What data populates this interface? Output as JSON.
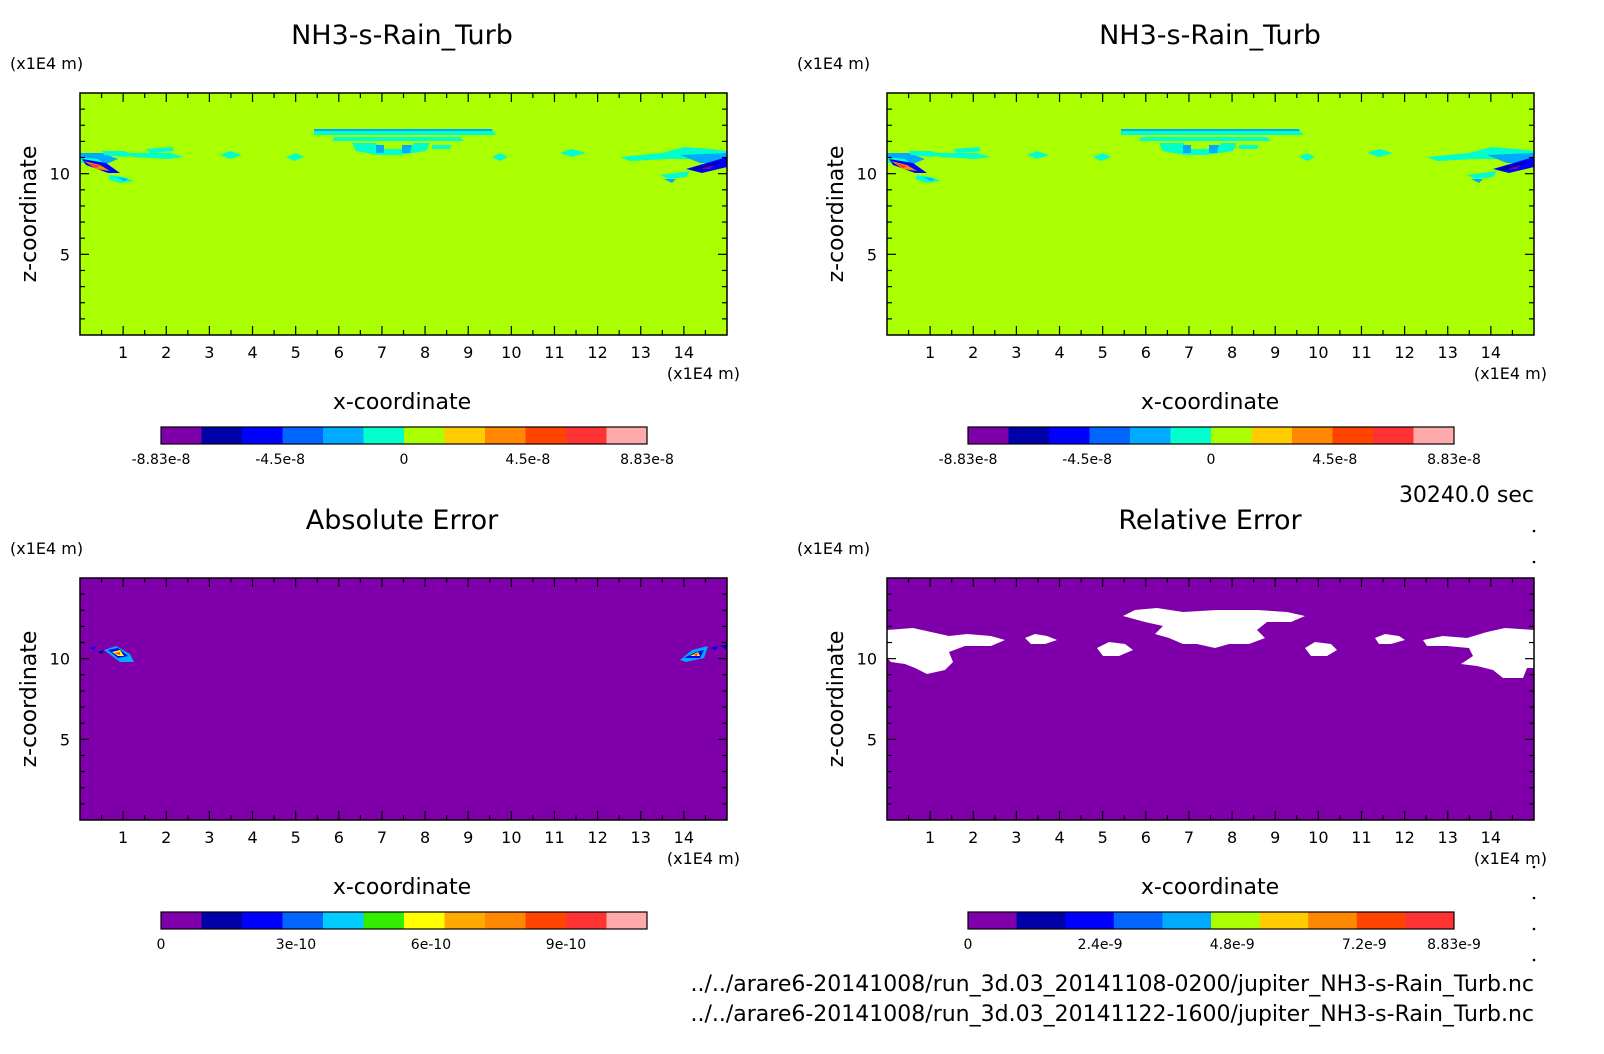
{
  "time_label": "30240.0 sec",
  "files": [
    "../../arare6-20141008/run_3d.03_20141108-0200/jupiter_NH3-s-Rain_Turb.nc",
    "../../arare6-20141008/run_3d.03_20141122-1600/jupiter_NH3-s-Rain_Turb.nc"
  ],
  "colors": {
    "purple": "#7f00aa",
    "navy": "#0000a8",
    "blue": "#0000ff",
    "azure": "#0066ff",
    "skyblue": "#00aaff",
    "cyan": "#00ffcc",
    "green": "#33ee00",
    "lime": "#aaff00",
    "yellow": "#ffcc00",
    "orange": "#ff8800",
    "redorange": "#ff4400",
    "red": "#ff3333",
    "pink": "#ffaaaa",
    "white": "#ffffff"
  },
  "chart_data": [
    {
      "type": "heatmap",
      "title": "NH3-s-Rain_Turb",
      "xlabel": "x-coordinate",
      "ylabel": "z-coordinate",
      "x_unit": "(x1E4 m)",
      "y_unit": "(x1E4 m)",
      "xlim": [
        0,
        15
      ],
      "ylim": [
        0,
        15
      ],
      "xticks": [
        1,
        2,
        3,
        4,
        5,
        6,
        7,
        8,
        9,
        10,
        11,
        12,
        13,
        14
      ],
      "yticks": [
        5,
        10
      ],
      "background_color": "#aaff00",
      "colorbar": {
        "min": -8.83e-08,
        "max": 8.83e-08,
        "labels": [
          "-8.83e-8",
          "-4.5e-8",
          "0",
          "4.5e-8",
          "8.83e-8"
        ],
        "colors": [
          "#7f00aa",
          "#0000a8",
          "#0000ff",
          "#0066ff",
          "#00aaff",
          "#00ffcc",
          "#aaff00",
          "#ffcc00",
          "#ff8800",
          "#ff4400",
          "#ff3333",
          "#ffaaaa"
        ]
      }
    },
    {
      "type": "heatmap",
      "title": "NH3-s-Rain_Turb",
      "xlabel": "x-coordinate",
      "ylabel": "z-coordinate",
      "x_unit": "(x1E4 m)",
      "y_unit": "(x1E4 m)",
      "xlim": [
        0,
        15
      ],
      "ylim": [
        0,
        15
      ],
      "xticks": [
        1,
        2,
        3,
        4,
        5,
        6,
        7,
        8,
        9,
        10,
        11,
        12,
        13,
        14
      ],
      "yticks": [
        5,
        10
      ],
      "background_color": "#aaff00",
      "colorbar": {
        "min": -8.83e-08,
        "max": 8.83e-08,
        "labels": [
          "-8.83e-8",
          "-4.5e-8",
          "0",
          "4.5e-8",
          "8.83e-8"
        ],
        "colors": [
          "#7f00aa",
          "#0000a8",
          "#0000ff",
          "#0066ff",
          "#00aaff",
          "#00ffcc",
          "#aaff00",
          "#ffcc00",
          "#ff8800",
          "#ff4400",
          "#ff3333",
          "#ffaaaa"
        ]
      }
    },
    {
      "type": "heatmap",
      "title": "Absolute Error",
      "xlabel": "x-coordinate",
      "ylabel": "z-coordinate",
      "x_unit": "(x1E4 m)",
      "y_unit": "(x1E4 m)",
      "xlim": [
        0,
        15
      ],
      "ylim": [
        0,
        15
      ],
      "xticks": [
        1,
        2,
        3,
        4,
        5,
        6,
        7,
        8,
        9,
        10,
        11,
        12,
        13,
        14
      ],
      "yticks": [
        5,
        10
      ],
      "background_color": "#7f00aa",
      "colorbar": {
        "min": 0,
        "max": 1.08e-09,
        "labels": [
          "0",
          "3e-10",
          "6e-10",
          "9e-10"
        ],
        "colors": [
          "#7f00aa",
          "#0000a8",
          "#0000ff",
          "#0066ff",
          "#00ccff",
          "#33ee00",
          "#ffff00",
          "#ffaa00",
          "#ff8800",
          "#ff4400",
          "#ff3333",
          "#ffaaaa"
        ]
      }
    },
    {
      "type": "heatmap",
      "title": "Relative Error",
      "xlabel": "x-coordinate",
      "ylabel": "z-coordinate",
      "x_unit": "(x1E4 m)",
      "y_unit": "(x1E4 m)",
      "xlim": [
        0,
        15
      ],
      "ylim": [
        0,
        15
      ],
      "xticks": [
        1,
        2,
        3,
        4,
        5,
        6,
        7,
        8,
        9,
        10,
        11,
        12,
        13,
        14
      ],
      "yticks": [
        5,
        10
      ],
      "background_color": "#7f00aa",
      "colorbar": {
        "min": 0,
        "max": 8.83e-09,
        "labels": [
          "0",
          "2.4e-9",
          "4.8e-9",
          "7.2e-9",
          "8.83e-9"
        ],
        "colors": [
          "#7f00aa",
          "#0000a8",
          "#0000ff",
          "#0066ff",
          "#00aaff",
          "#aaff00",
          "#ffcc00",
          "#ff8800",
          "#ff4400",
          "#ff3333"
        ]
      }
    }
  ]
}
